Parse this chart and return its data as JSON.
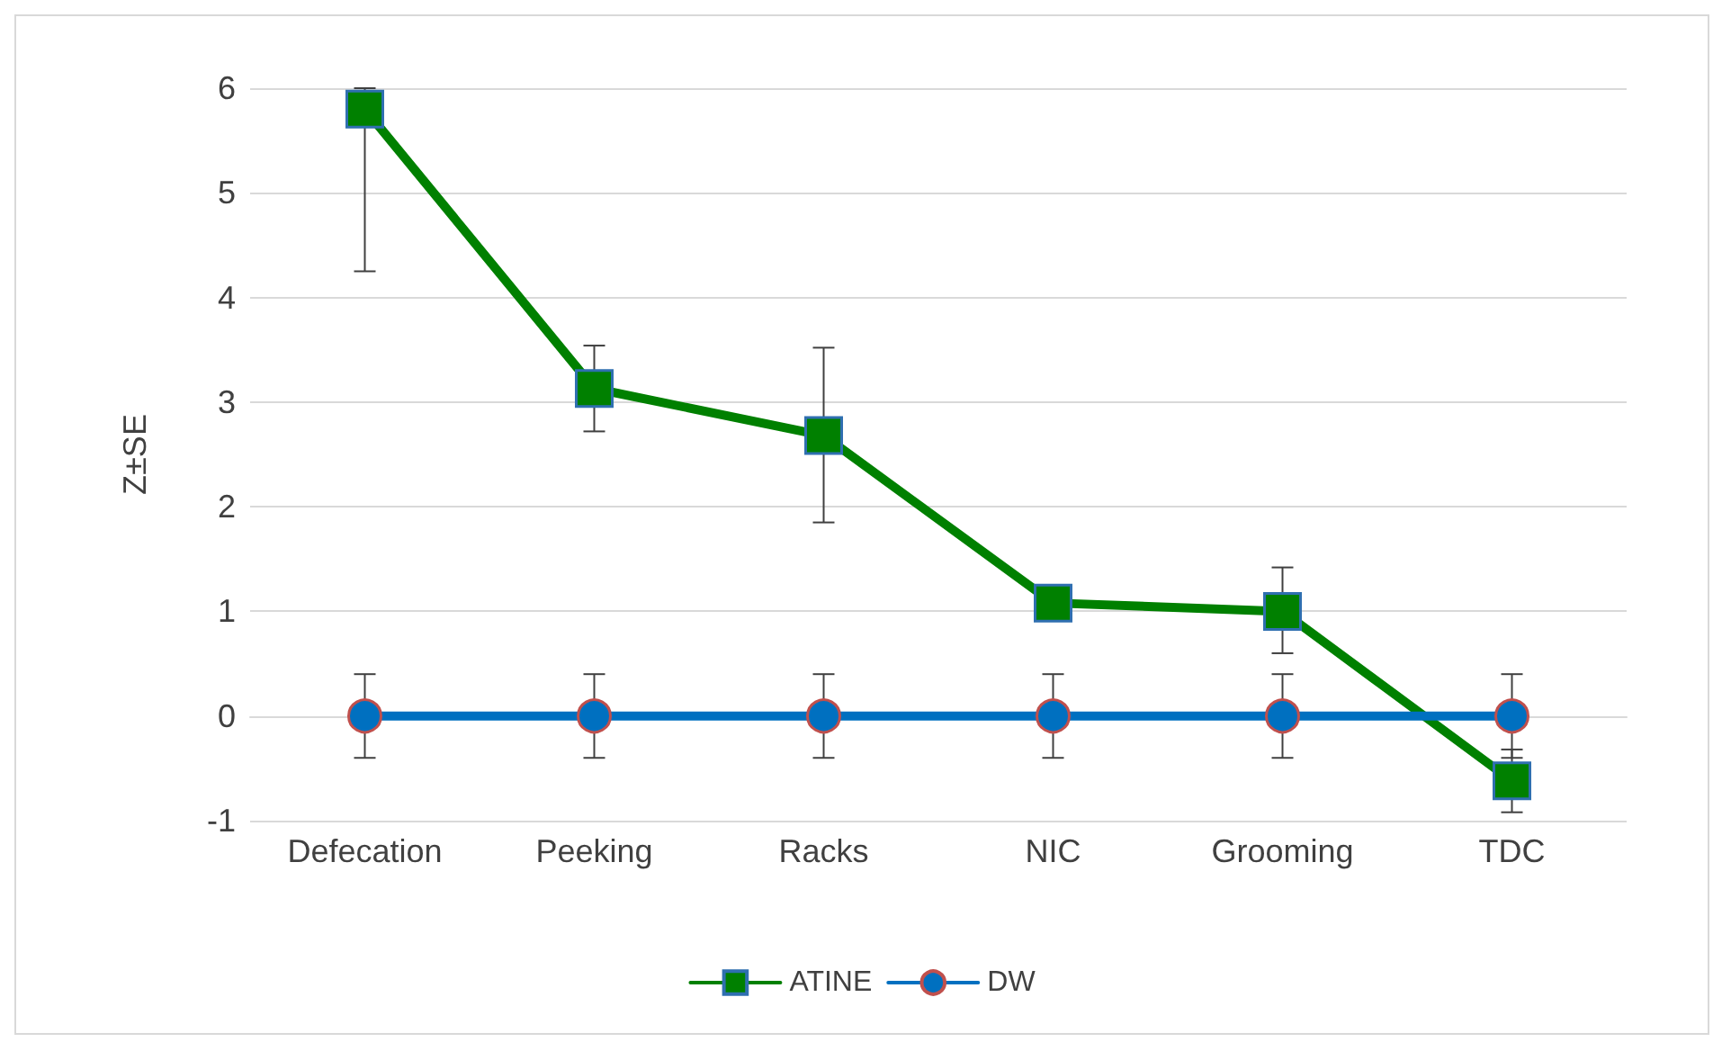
{
  "chart_data": {
    "type": "line",
    "ylabel": "Z±SE",
    "categories": [
      "Defecation",
      "Peeking",
      "Racks",
      "NIC",
      "Grooming",
      "TDC"
    ],
    "series": [
      {
        "name": "ATINE",
        "color": "#008000",
        "marker": "square",
        "values": [
          5.8,
          3.13,
          2.68,
          1.08,
          1.0,
          -0.62
        ],
        "errors": [
          [
            4.25,
            6
          ],
          [
            2.72,
            3.54
          ],
          [
            1.85,
            3.52
          ],
          null,
          [
            0.6,
            1.42
          ],
          [
            -0.92,
            -0.32
          ]
        ]
      },
      {
        "name": "DW",
        "color": "#0070c0",
        "marker": "circle",
        "values": [
          0,
          0,
          0,
          0,
          0,
          0
        ],
        "errors": [
          0.4,
          0.4,
          0.4,
          0.4,
          0.4,
          0.4
        ]
      }
    ],
    "ylim": [
      -1,
      6
    ],
    "yticks": [
      -1,
      0,
      1,
      2,
      3,
      4,
      5,
      6
    ],
    "grid": "y",
    "legend": "bottom"
  }
}
